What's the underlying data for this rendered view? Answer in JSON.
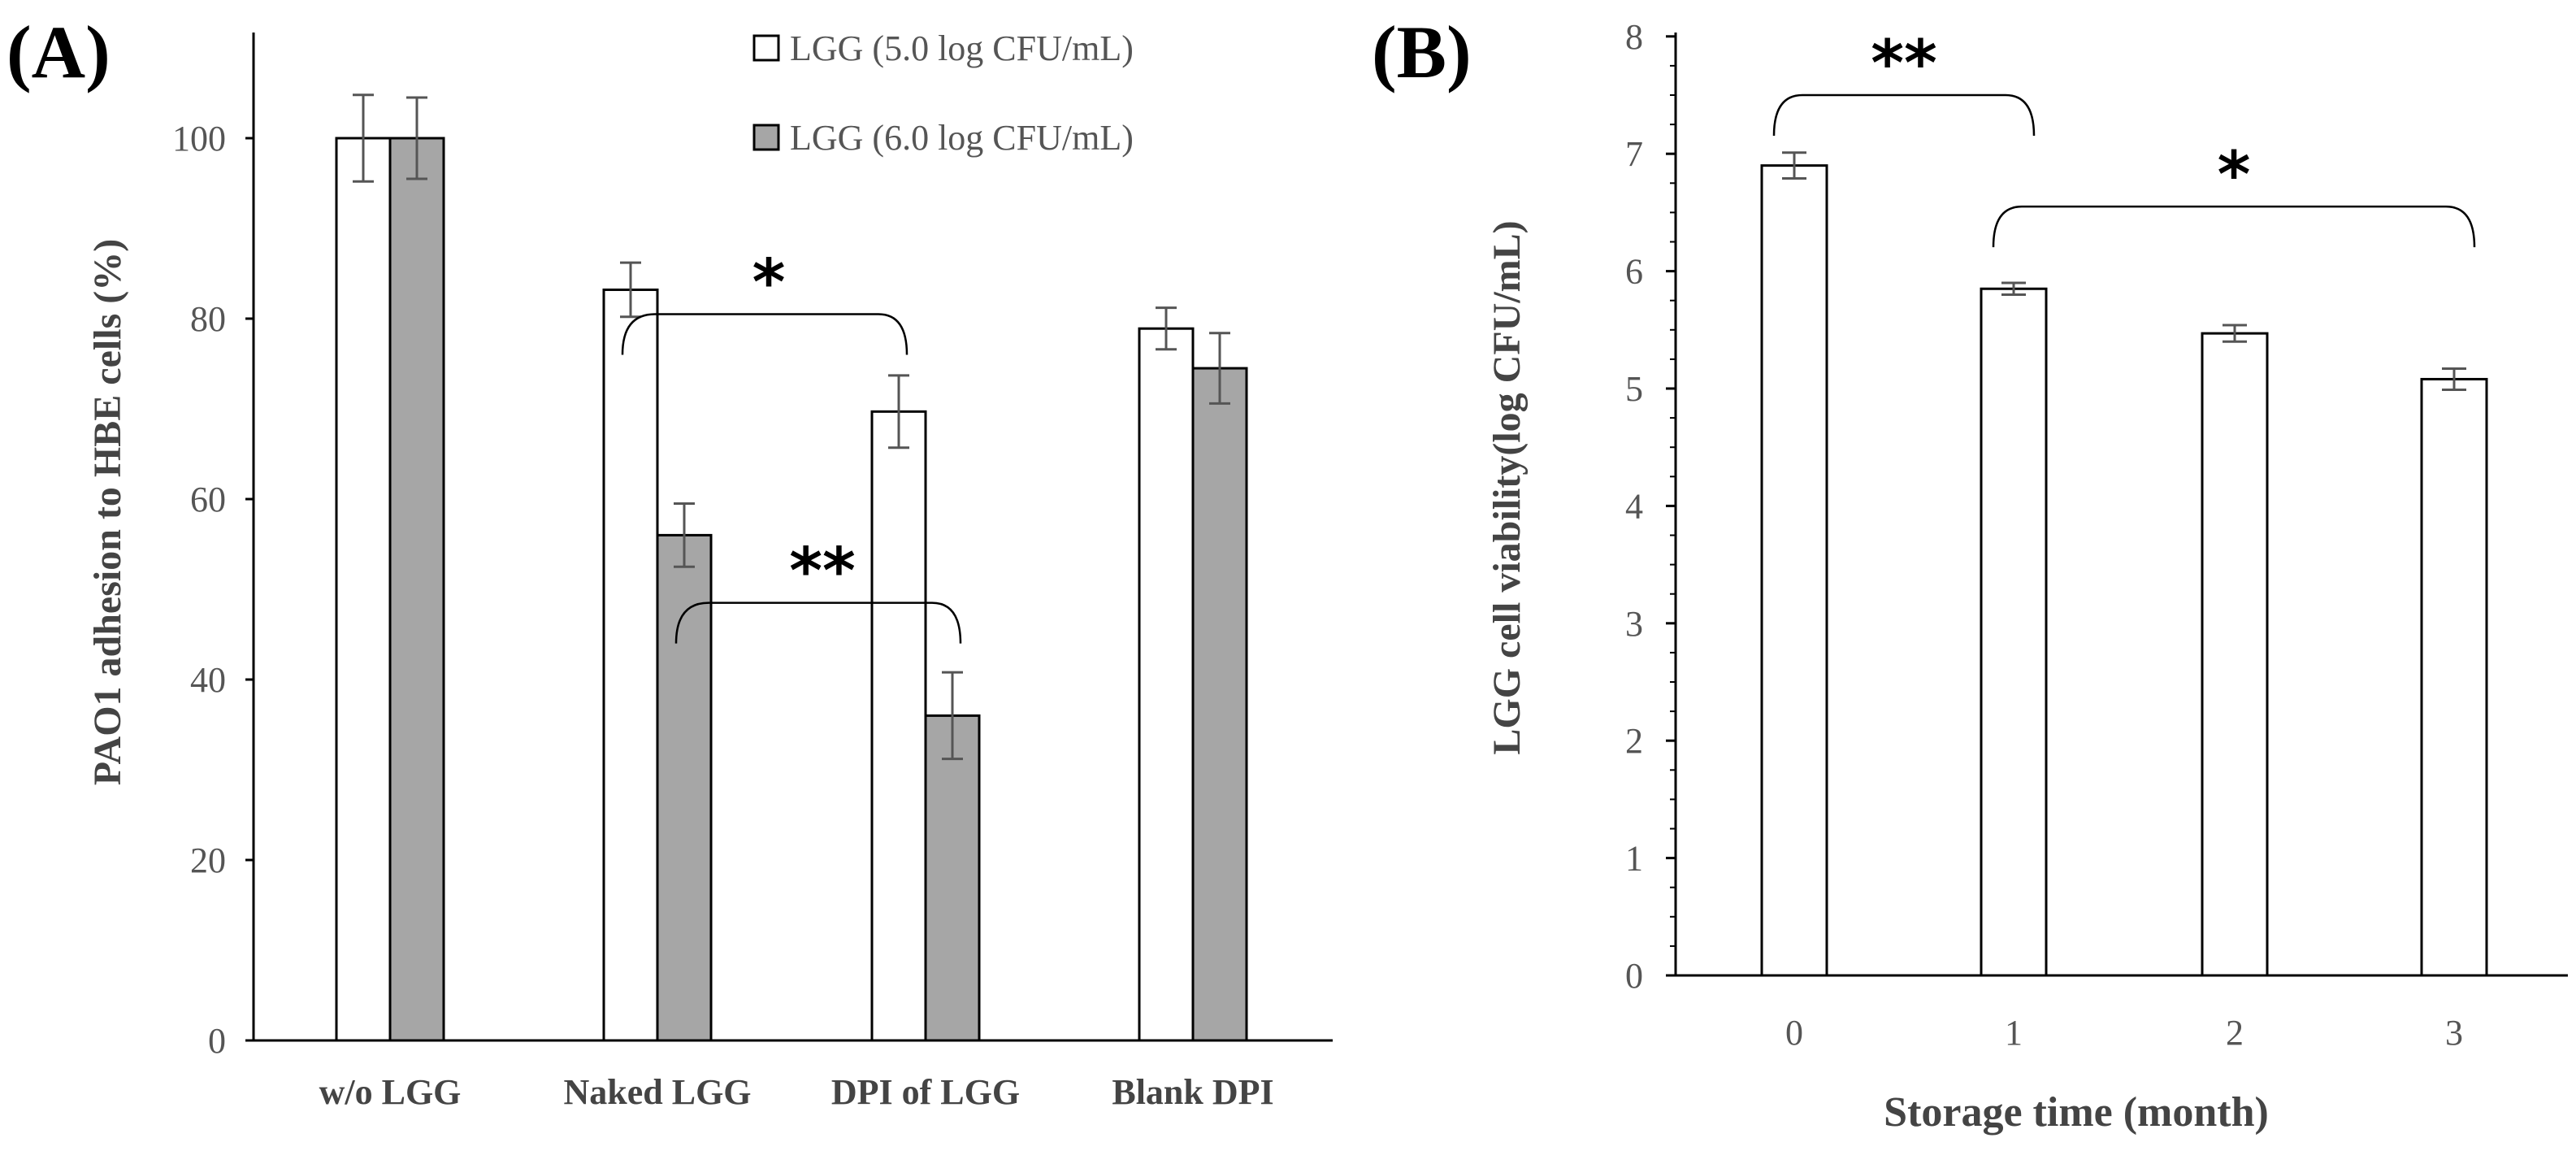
{
  "colors": {
    "white_bar": "#ffffff",
    "gray_bar": "#a6a6a6",
    "outline": "#000000",
    "error_bar": "#555555"
  },
  "chart_data": [
    {
      "type": "bar",
      "panel_label": "(A)",
      "ylabel": "PAO1 adhesion to HBE cells (%)",
      "xlabel": "",
      "ylim": [
        0,
        110
      ],
      "yticks": [
        0,
        20,
        40,
        60,
        80,
        100
      ],
      "categories": [
        "w/o LGG",
        "Naked LGG",
        "DPI of LGG",
        "Blank DPI"
      ],
      "series": [
        {
          "name": "LGG (5.0 log CFU/mL)",
          "color": "#ffffff",
          "values": [
            100,
            83.2,
            69.7,
            78.9
          ],
          "errors": [
            4.8,
            3.0,
            4.0,
            2.3
          ]
        },
        {
          "name": "LGG (6.0 log CFU/mL)",
          "color": "#a6a6a6",
          "values": [
            100,
            56.0,
            36.0,
            74.5
          ],
          "errors": [
            4.5,
            3.5,
            4.8,
            3.9
          ]
        }
      ],
      "legend_position": "top-right",
      "annotations": [
        {
          "label": "*",
          "from": {
            "category": 1,
            "series": 0
          },
          "to": {
            "category": 2,
            "series": 0
          },
          "level": 80.5
        },
        {
          "label": "**",
          "from": {
            "category": 1,
            "series": 1
          },
          "to": {
            "category": 2,
            "series": 1
          },
          "level": 48.5
        }
      ]
    },
    {
      "type": "bar",
      "panel_label": "(B)",
      "ylabel": "LGG cell viability(log CFU/mL)",
      "xlabel": "Storage time (month)",
      "ylim": [
        0,
        8
      ],
      "yticks": [
        0,
        1,
        2,
        3,
        4,
        5,
        6,
        7,
        8
      ],
      "minor_ticks": true,
      "categories": [
        "0",
        "1",
        "2",
        "3"
      ],
      "series": [
        {
          "name": "LGG",
          "color": "#ffffff",
          "values": [
            6.9,
            5.85,
            5.47,
            5.08
          ],
          "errors": [
            0.11,
            0.05,
            0.07,
            0.09
          ]
        }
      ],
      "annotations": [
        {
          "label": "**",
          "from": 0,
          "to": 1,
          "level": 7.5
        },
        {
          "label": "*",
          "from": 1,
          "to": 3,
          "level": 6.55
        }
      ]
    }
  ]
}
